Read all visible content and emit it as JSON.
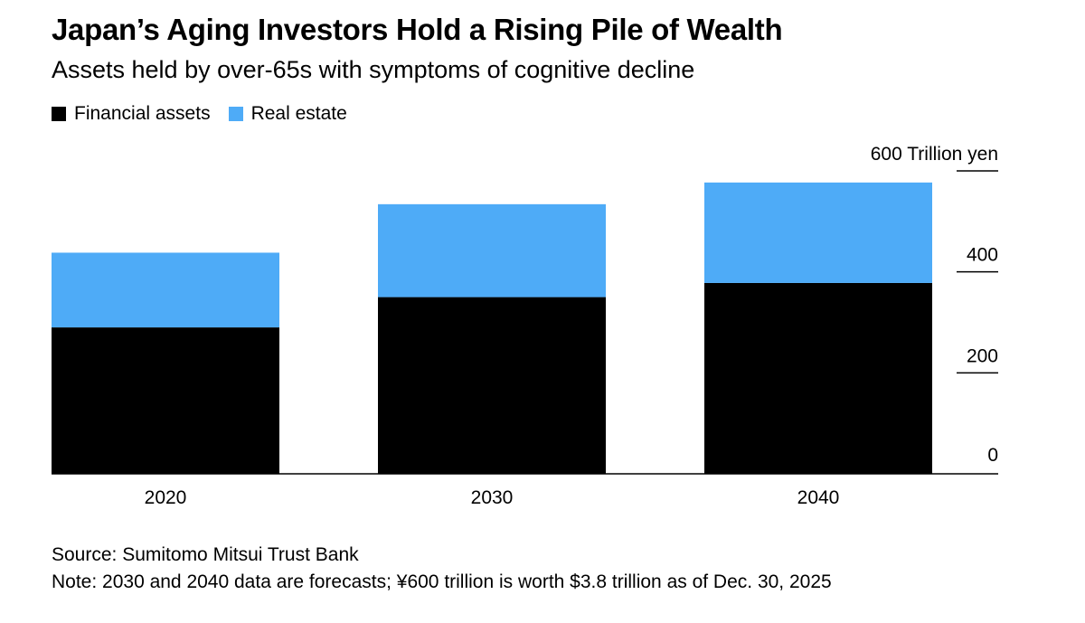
{
  "title": "Japan’s Aging Investors Hold a Rising Pile of Wealth",
  "subtitle": "Assets held by over-65s with symptoms of cognitive decline",
  "legend": {
    "financial": "Financial assets",
    "real_estate": "Real estate"
  },
  "colors": {
    "financial": "#000000",
    "real_estate": "#4eabf7"
  },
  "chart_data": {
    "type": "bar",
    "stacked": true,
    "title": "Japan’s Aging Investors Hold a Rising Pile of Wealth",
    "categories": [
      "2020",
      "2030",
      "2040"
    ],
    "series": [
      {
        "name": "Financial assets",
        "values": [
          290,
          350,
          378
        ]
      },
      {
        "name": "Real estate",
        "values": [
          148,
          184,
          199
        ]
      }
    ],
    "ylim": [
      0,
      600
    ],
    "yticks": [
      {
        "value": 0,
        "label": "0"
      },
      {
        "value": 200,
        "label": "200"
      },
      {
        "value": 400,
        "label": "400"
      },
      {
        "value": 600,
        "label": "600 Trillion yen"
      }
    ],
    "ylabel": "Trillion yen",
    "xlabel": "",
    "legend_position": "top-left"
  },
  "footer": {
    "source": "Source: Sumitomo Mitsui Trust Bank",
    "note": "Note: 2030 and 2040 data are forecasts; ¥600 trillion is worth $3.8 trillion as of Dec. 30, 2025"
  }
}
